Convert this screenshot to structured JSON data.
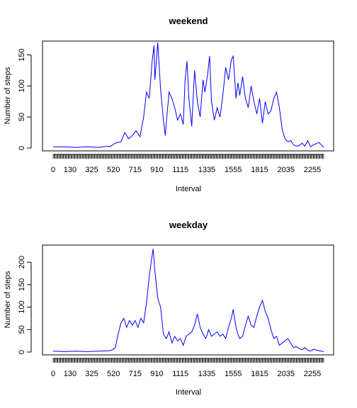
{
  "chart_data": [
    {
      "type": "line",
      "title": "weekend",
      "xlabel": "Interval",
      "ylabel": "Number of steps",
      "color": "#0000ff",
      "x_tick_labels": [
        "0",
        "130",
        "325",
        "520",
        "715",
        "910",
        "1115",
        "1335",
        "1555",
        "1815",
        "2035",
        "2255"
      ],
      "y_ticks": [
        0,
        50,
        100,
        150
      ],
      "ylim": [
        0,
        170
      ],
      "series": [
        {
          "name": "",
          "points": [
            [
              0,
              2
            ],
            [
              100,
              2
            ],
            [
              200,
              1
            ],
            [
              300,
              2
            ],
            [
              400,
              1
            ],
            [
              450,
              3
            ],
            [
              500,
              2
            ],
            [
              530,
              8
            ],
            [
              600,
              10
            ],
            [
              620,
              25
            ],
            [
              640,
              15
            ],
            [
              700,
              20
            ],
            [
              720,
              28
            ],
            [
              740,
              18
            ],
            [
              800,
              50
            ],
            [
              815,
              90
            ],
            [
              830,
              80
            ],
            [
              845,
              140
            ],
            [
              855,
              165
            ],
            [
              900,
              110
            ],
            [
              915,
              170
            ],
            [
              930,
              95
            ],
            [
              945,
              45
            ],
            [
              955,
              20
            ],
            [
              1000,
              40
            ],
            [
              1015,
              90
            ],
            [
              1030,
              80
            ],
            [
              1045,
              65
            ],
            [
              1100,
              45
            ],
            [
              1115,
              55
            ],
            [
              1130,
              38
            ],
            [
              1140,
              110
            ],
            [
              1150,
              140
            ],
            [
              1200,
              80
            ],
            [
              1215,
              35
            ],
            [
              1230,
              125
            ],
            [
              1245,
              75
            ],
            [
              1300,
              50
            ],
            [
              1315,
              110
            ],
            [
              1325,
              90
            ],
            [
              1340,
              120
            ],
            [
              1350,
              148
            ],
            [
              1400,
              75
            ],
            [
              1415,
              45
            ],
            [
              1430,
              65
            ],
            [
              1445,
              50
            ],
            [
              1500,
              85
            ],
            [
              1515,
              130
            ],
            [
              1530,
              110
            ],
            [
              1545,
              142
            ],
            [
              1555,
              148
            ],
            [
              1610,
              80
            ],
            [
              1620,
              105
            ],
            [
              1630,
              85
            ],
            [
              1645,
              115
            ],
            [
              1700,
              80
            ],
            [
              1715,
              65
            ],
            [
              1730,
              100
            ],
            [
              1745,
              75
            ],
            [
              1800,
              55
            ],
            [
              1815,
              80
            ],
            [
              1830,
              40
            ],
            [
              1845,
              75
            ],
            [
              1900,
              55
            ],
            [
              1915,
              60
            ],
            [
              1930,
              80
            ],
            [
              1945,
              90
            ],
            [
              2000,
              65
            ],
            [
              2015,
              30
            ],
            [
              2030,
              15
            ],
            [
              2045,
              10
            ],
            [
              2100,
              12
            ],
            [
              2115,
              5
            ],
            [
              2130,
              3
            ],
            [
              2145,
              4
            ],
            [
              2200,
              8
            ],
            [
              2215,
              3
            ],
            [
              2230,
              12
            ],
            [
              2245,
              2
            ],
            [
              2300,
              5
            ],
            [
              2330,
              9
            ],
            [
              2355,
              1
            ]
          ]
        }
      ]
    },
    {
      "type": "line",
      "title": "weekday",
      "xlabel": "Interval",
      "ylabel": "Number of steps",
      "color": "#0000ff",
      "x_tick_labels": [
        "0",
        "130",
        "325",
        "520",
        "715",
        "910",
        "1115",
        "1335",
        "1555",
        "1815",
        "2035",
        "2255"
      ],
      "y_ticks": [
        0,
        50,
        100,
        150,
        200
      ],
      "ylim": [
        0,
        235
      ],
      "series": [
        {
          "name": "",
          "points": [
            [
              0,
              2
            ],
            [
              100,
              1
            ],
            [
              200,
              2
            ],
            [
              300,
              1
            ],
            [
              400,
              2
            ],
            [
              500,
              3
            ],
            [
              515,
              5
            ],
            [
              530,
              10
            ],
            [
              545,
              40
            ],
            [
              600,
              65
            ],
            [
              615,
              75
            ],
            [
              630,
              55
            ],
            [
              645,
              70
            ],
            [
              700,
              60
            ],
            [
              715,
              70
            ],
            [
              730,
              55
            ],
            [
              745,
              75
            ],
            [
              800,
              65
            ],
            [
              815,
              110
            ],
            [
              830,
              170
            ],
            [
              840,
              200
            ],
            [
              850,
              230
            ],
            [
              900,
              180
            ],
            [
              915,
              120
            ],
            [
              930,
              100
            ],
            [
              945,
              40
            ],
            [
              1000,
              30
            ],
            [
              1015,
              45
            ],
            [
              1030,
              20
            ],
            [
              1045,
              35
            ],
            [
              1100,
              25
            ],
            [
              1115,
              30
            ],
            [
              1130,
              15
            ],
            [
              1145,
              35
            ],
            [
              1200,
              40
            ],
            [
              1215,
              45
            ],
            [
              1230,
              60
            ],
            [
              1245,
              85
            ],
            [
              1300,
              55
            ],
            [
              1315,
              40
            ],
            [
              1330,
              30
            ],
            [
              1345,
              50
            ],
            [
              1400,
              35
            ],
            [
              1415,
              40
            ],
            [
              1430,
              45
            ],
            [
              1445,
              35
            ],
            [
              1500,
              40
            ],
            [
              1515,
              30
            ],
            [
              1530,
              55
            ],
            [
              1545,
              75
            ],
            [
              1555,
              95
            ],
            [
              1610,
              55
            ],
            [
              1620,
              40
            ],
            [
              1630,
              30
            ],
            [
              1645,
              35
            ],
            [
              1700,
              60
            ],
            [
              1715,
              80
            ],
            [
              1730,
              60
            ],
            [
              1745,
              55
            ],
            [
              1800,
              80
            ],
            [
              1815,
              100
            ],
            [
              1830,
              115
            ],
            [
              1845,
              90
            ],
            [
              1900,
              75
            ],
            [
              1915,
              50
            ],
            [
              1930,
              30
            ],
            [
              1945,
              35
            ],
            [
              2000,
              15
            ],
            [
              2015,
              20
            ],
            [
              2030,
              25
            ],
            [
              2045,
              30
            ],
            [
              2100,
              20
            ],
            [
              2115,
              10
            ],
            [
              2130,
              12
            ],
            [
              2145,
              8
            ],
            [
              2200,
              5
            ],
            [
              2215,
              10
            ],
            [
              2230,
              4
            ],
            [
              2245,
              2
            ],
            [
              2300,
              6
            ],
            [
              2330,
              3
            ],
            [
              2355,
              1
            ]
          ]
        }
      ]
    }
  ]
}
